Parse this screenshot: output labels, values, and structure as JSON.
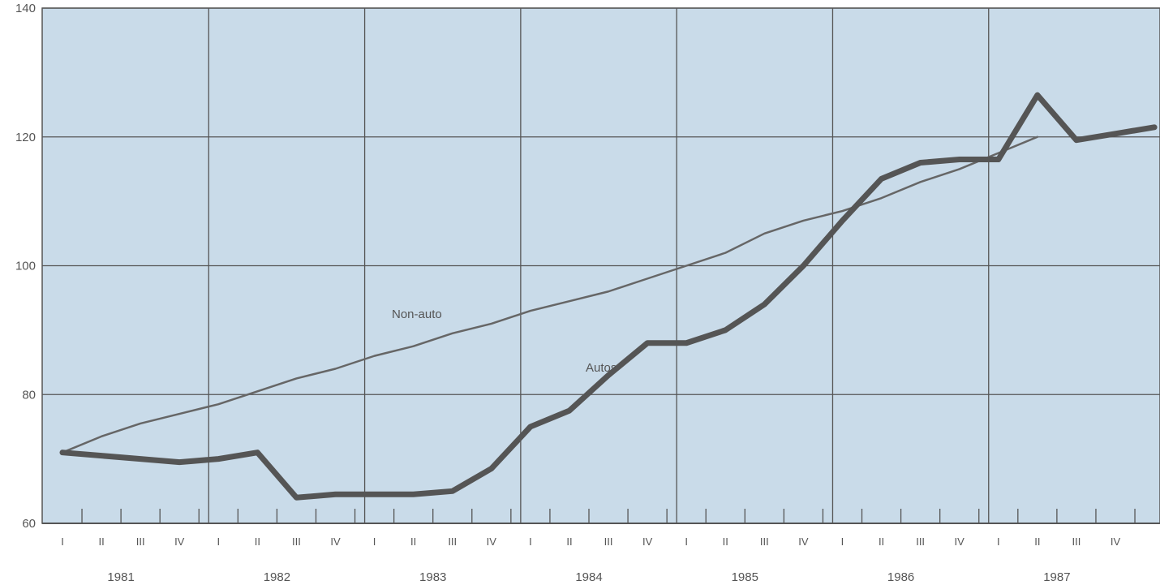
{
  "chart_data": {
    "type": "line",
    "title": "",
    "xlabel": "",
    "ylabel": "",
    "ylim": [
      60,
      140
    ],
    "yticks": [
      "60",
      "80",
      "100",
      "120",
      "140"
    ],
    "grid": true,
    "quarter_labels": [
      "I",
      "II",
      "III",
      "IV"
    ],
    "years": [
      "1981",
      "1982",
      "1983",
      "1984",
      "1985",
      "1986",
      "1987"
    ],
    "series": [
      {
        "name": "Autos",
        "values": [
          71,
          70.5,
          70,
          69.5,
          70,
          71,
          64,
          64.5,
          64.5,
          64.5,
          65,
          68.5,
          75,
          77.5,
          83,
          88,
          88,
          90,
          94,
          100,
          107,
          113.5,
          116,
          116.5,
          116.5,
          126.5,
          119.5,
          120.5,
          121.5
        ]
      },
      {
        "name": "Non-auto",
        "values": [
          71,
          73.5,
          75.5,
          77,
          78.5,
          80.5,
          82.5,
          84,
          86,
          87.5,
          89.5,
          91,
          93,
          94.5,
          96,
          98,
          100,
          102,
          105,
          107,
          108.5,
          110.5,
          113,
          115,
          117.5,
          120
        ]
      }
    ],
    "annotations": {
      "autos_label": "Autos",
      "nonauto_label": "Non-auto"
    },
    "colors": {
      "plot_background": "#c9dbe9",
      "grid": "#555555",
      "autos_line": "#555555",
      "nonauto_line": "#666666"
    }
  }
}
